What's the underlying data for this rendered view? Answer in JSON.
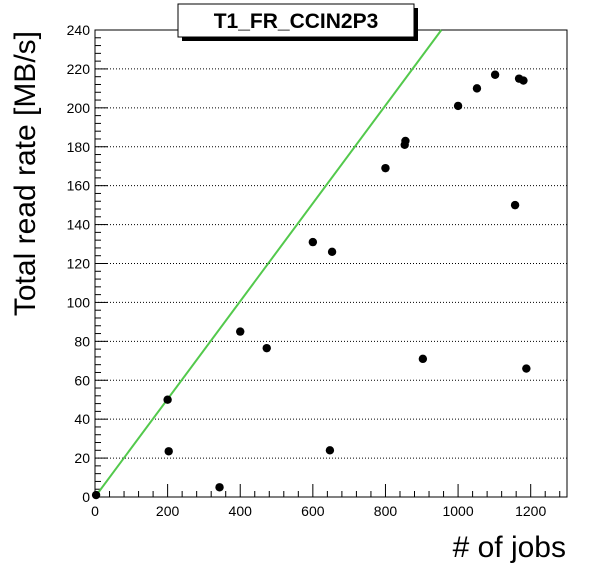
{
  "chart_data": {
    "type": "scatter",
    "title": "T1_FR_CCIN2P3",
    "xlabel": "# of jobs",
    "ylabel": "Total read rate [MB/s]",
    "xlim": [
      0,
      1300
    ],
    "ylim": [
      0,
      240
    ],
    "x_ticks": [
      0,
      200,
      400,
      600,
      800,
      1000,
      1200
    ],
    "y_ticks": [
      0,
      20,
      40,
      60,
      80,
      100,
      120,
      140,
      160,
      180,
      200,
      220,
      240
    ],
    "grid": "y-major-dotted",
    "legend": "none",
    "series": [
      {
        "points": [
          [
            3,
            1
          ],
          [
            200,
            50
          ],
          [
            203,
            23.5
          ],
          [
            343,
            5
          ],
          [
            400,
            85
          ],
          [
            473,
            76.5
          ],
          [
            600,
            131
          ],
          [
            647,
            24
          ],
          [
            653,
            126
          ],
          [
            800,
            169
          ],
          [
            853,
            181
          ],
          [
            855,
            183
          ],
          [
            903,
            71
          ],
          [
            1000,
            201
          ],
          [
            1052,
            210
          ],
          [
            1102,
            217
          ],
          [
            1157,
            150
          ],
          [
            1168,
            215
          ],
          [
            1180,
            214
          ],
          [
            1188,
            66
          ]
        ],
        "color": "#000000"
      }
    ],
    "reference_line": {
      "points": [
        [
          0,
          0
        ],
        [
          954,
          240
        ]
      ],
      "color": "#53c94c"
    }
  }
}
